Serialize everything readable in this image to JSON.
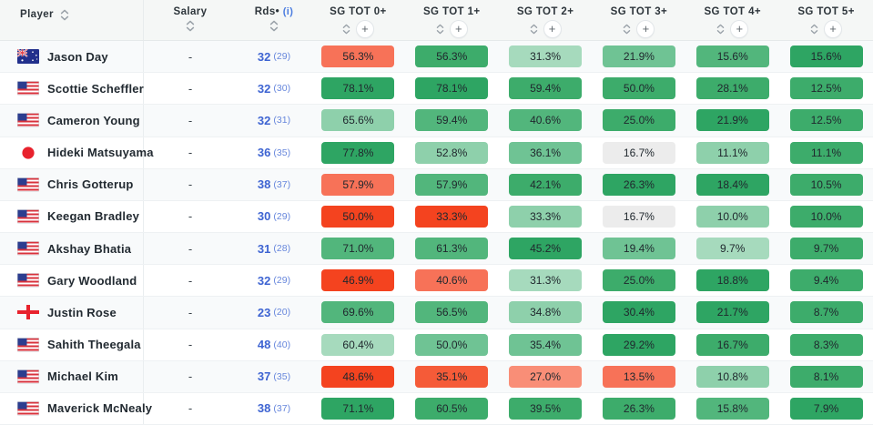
{
  "header": {
    "columns": [
      {
        "label": "Player"
      },
      {
        "label": "Salary"
      },
      {
        "label": "Rds•",
        "info": "(i)"
      },
      {
        "label": "SG TOT 0+"
      },
      {
        "label": "SG TOT 1+"
      },
      {
        "label": "SG TOT 2+"
      },
      {
        "label": "SG TOT 3+"
      },
      {
        "label": "SG TOT 4+"
      },
      {
        "label": "SG TOT 5+"
      }
    ],
    "plus_label": "+"
  },
  "palette": {
    "r1": "#f4431f",
    "r2": "#f55b38",
    "r3": "#f77258",
    "r4": "#f98e77",
    "g1": "#2ea563",
    "g2": "#3dac6b",
    "g3": "#52b67c",
    "g4": "#6fc394",
    "g5": "#8ed0ab",
    "g6": "#a6dabd",
    "n": "#ececec"
  },
  "rows": [
    {
      "player": "Jason Day",
      "country": "au",
      "salary": "-",
      "rds": "32",
      "rds_alt": "(29)",
      "cells": [
        {
          "value": "56.3%",
          "color": "r3"
        },
        {
          "value": "56.3%",
          "color": "g2"
        },
        {
          "value": "31.3%",
          "color": "g6"
        },
        {
          "value": "21.9%",
          "color": "g4"
        },
        {
          "value": "15.6%",
          "color": "g3"
        },
        {
          "value": "15.6%",
          "color": "g1"
        }
      ]
    },
    {
      "player": "Scottie Scheffler",
      "country": "us",
      "salary": "-",
      "rds": "32",
      "rds_alt": "(30)",
      "cells": [
        {
          "value": "78.1%",
          "color": "g1"
        },
        {
          "value": "78.1%",
          "color": "g1"
        },
        {
          "value": "59.4%",
          "color": "g2"
        },
        {
          "value": "50.0%",
          "color": "g2"
        },
        {
          "value": "28.1%",
          "color": "g2"
        },
        {
          "value": "12.5%",
          "color": "g2"
        }
      ]
    },
    {
      "player": "Cameron Young",
      "country": "us",
      "salary": "-",
      "rds": "32",
      "rds_alt": "(31)",
      "cells": [
        {
          "value": "65.6%",
          "color": "g5"
        },
        {
          "value": "59.4%",
          "color": "g3"
        },
        {
          "value": "40.6%",
          "color": "g3"
        },
        {
          "value": "25.0%",
          "color": "g2"
        },
        {
          "value": "21.9%",
          "color": "g1"
        },
        {
          "value": "12.5%",
          "color": "g2"
        }
      ]
    },
    {
      "player": "Hideki Matsuyama",
      "country": "jp",
      "salary": "-",
      "rds": "36",
      "rds_alt": "(35)",
      "cells": [
        {
          "value": "77.8%",
          "color": "g1"
        },
        {
          "value": "52.8%",
          "color": "g5"
        },
        {
          "value": "36.1%",
          "color": "g4"
        },
        {
          "value": "16.7%",
          "color": "n"
        },
        {
          "value": "11.1%",
          "color": "g5"
        },
        {
          "value": "11.1%",
          "color": "g2"
        }
      ]
    },
    {
      "player": "Chris Gotterup",
      "country": "us",
      "salary": "-",
      "rds": "38",
      "rds_alt": "(37)",
      "cells": [
        {
          "value": "57.9%",
          "color": "r3"
        },
        {
          "value": "57.9%",
          "color": "g3"
        },
        {
          "value": "42.1%",
          "color": "g2"
        },
        {
          "value": "26.3%",
          "color": "g1"
        },
        {
          "value": "18.4%",
          "color": "g1"
        },
        {
          "value": "10.5%",
          "color": "g2"
        }
      ]
    },
    {
      "player": "Keegan Bradley",
      "country": "us",
      "salary": "-",
      "rds": "30",
      "rds_alt": "(29)",
      "cells": [
        {
          "value": "50.0%",
          "color": "r1"
        },
        {
          "value": "33.3%",
          "color": "r1"
        },
        {
          "value": "33.3%",
          "color": "g5"
        },
        {
          "value": "16.7%",
          "color": "n"
        },
        {
          "value": "10.0%",
          "color": "g5"
        },
        {
          "value": "10.0%",
          "color": "g2"
        }
      ]
    },
    {
      "player": "Akshay Bhatia",
      "country": "us",
      "salary": "-",
      "rds": "31",
      "rds_alt": "(28)",
      "cells": [
        {
          "value": "71.0%",
          "color": "g3"
        },
        {
          "value": "61.3%",
          "color": "g3"
        },
        {
          "value": "45.2%",
          "color": "g1"
        },
        {
          "value": "19.4%",
          "color": "g4"
        },
        {
          "value": "9.7%",
          "color": "g6"
        },
        {
          "value": "9.7%",
          "color": "g2"
        }
      ]
    },
    {
      "player": "Gary Woodland",
      "country": "us",
      "salary": "-",
      "rds": "32",
      "rds_alt": "(29)",
      "cells": [
        {
          "value": "46.9%",
          "color": "r1"
        },
        {
          "value": "40.6%",
          "color": "r3"
        },
        {
          "value": "31.3%",
          "color": "g6"
        },
        {
          "value": "25.0%",
          "color": "g2"
        },
        {
          "value": "18.8%",
          "color": "g1"
        },
        {
          "value": "9.4%",
          "color": "g2"
        }
      ]
    },
    {
      "player": "Justin Rose",
      "country": "en",
      "salary": "-",
      "rds": "23",
      "rds_alt": "(20)",
      "cells": [
        {
          "value": "69.6%",
          "color": "g3"
        },
        {
          "value": "56.5%",
          "color": "g3"
        },
        {
          "value": "34.8%",
          "color": "g5"
        },
        {
          "value": "30.4%",
          "color": "g1"
        },
        {
          "value": "21.7%",
          "color": "g1"
        },
        {
          "value": "8.7%",
          "color": "g2"
        }
      ]
    },
    {
      "player": "Sahith Theegala",
      "country": "us",
      "salary": "-",
      "rds": "48",
      "rds_alt": "(40)",
      "cells": [
        {
          "value": "60.4%",
          "color": "g6"
        },
        {
          "value": "50.0%",
          "color": "g4"
        },
        {
          "value": "35.4%",
          "color": "g4"
        },
        {
          "value": "29.2%",
          "color": "g1"
        },
        {
          "value": "16.7%",
          "color": "g2"
        },
        {
          "value": "8.3%",
          "color": "g2"
        }
      ]
    },
    {
      "player": "Michael Kim",
      "country": "us",
      "salary": "-",
      "rds": "37",
      "rds_alt": "(35)",
      "cells": [
        {
          "value": "48.6%",
          "color": "r1"
        },
        {
          "value": "35.1%",
          "color": "r2"
        },
        {
          "value": "27.0%",
          "color": "r4"
        },
        {
          "value": "13.5%",
          "color": "r3"
        },
        {
          "value": "10.8%",
          "color": "g5"
        },
        {
          "value": "8.1%",
          "color": "g2"
        }
      ]
    },
    {
      "player": "Maverick McNealy",
      "country": "us",
      "salary": "-",
      "rds": "38",
      "rds_alt": "(37)",
      "cells": [
        {
          "value": "71.1%",
          "color": "g1"
        },
        {
          "value": "60.5%",
          "color": "g2"
        },
        {
          "value": "39.5%",
          "color": "g2"
        },
        {
          "value": "26.3%",
          "color": "g2"
        },
        {
          "value": "15.8%",
          "color": "g3"
        },
        {
          "value": "7.9%",
          "color": "g1"
        }
      ]
    }
  ]
}
